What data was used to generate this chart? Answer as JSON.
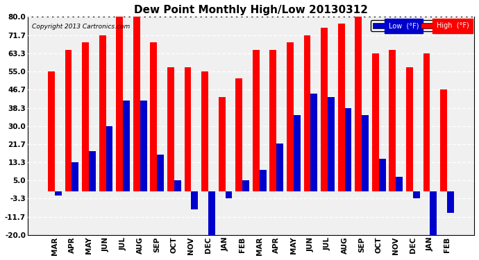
{
  "title": "Dew Point Monthly High/Low 20130312",
  "copyright": "Copyright 2013 Cartronics.com",
  "months": [
    "MAR",
    "APR",
    "MAY",
    "JUN",
    "JUL",
    "AUG",
    "SEP",
    "OCT",
    "NOV",
    "DEC",
    "JAN",
    "FEB",
    "MAR",
    "APR",
    "MAY",
    "JUN",
    "JUL",
    "AUG",
    "SEP",
    "OCT",
    "NOV",
    "DEC",
    "JAN",
    "FEB"
  ],
  "high": [
    55.0,
    65.0,
    68.3,
    71.7,
    82.0,
    80.0,
    68.3,
    57.0,
    57.0,
    55.0,
    43.3,
    51.7,
    65.0,
    65.0,
    68.3,
    71.7,
    75.0,
    77.0,
    80.0,
    63.3,
    65.0,
    57.0,
    63.3,
    46.7
  ],
  "low": [
    -2.0,
    13.3,
    18.3,
    30.0,
    41.7,
    41.7,
    17.0,
    5.0,
    -8.3,
    -20.0,
    -3.3,
    5.0,
    10.0,
    22.0,
    35.0,
    45.0,
    43.3,
    38.3,
    35.0,
    15.0,
    6.7,
    -3.3,
    -20.0,
    -10.0
  ],
  "ylim": [
    -20.0,
    80.0
  ],
  "yticks": [
    -20.0,
    -11.7,
    -3.3,
    5.0,
    13.3,
    21.7,
    30.0,
    38.3,
    46.7,
    55.0,
    63.3,
    71.7,
    80.0
  ],
  "high_color": "#FF0000",
  "low_color": "#0000CC",
  "bg_color": "#FFFFFF",
  "plot_bg_color": "#F0F0F0",
  "grid_color": "#CCCCCC",
  "title_fontsize": 11,
  "axis_fontsize": 7.5,
  "legend_high_label": "High  (°F)",
  "legend_low_label": "Low  (°F)"
}
